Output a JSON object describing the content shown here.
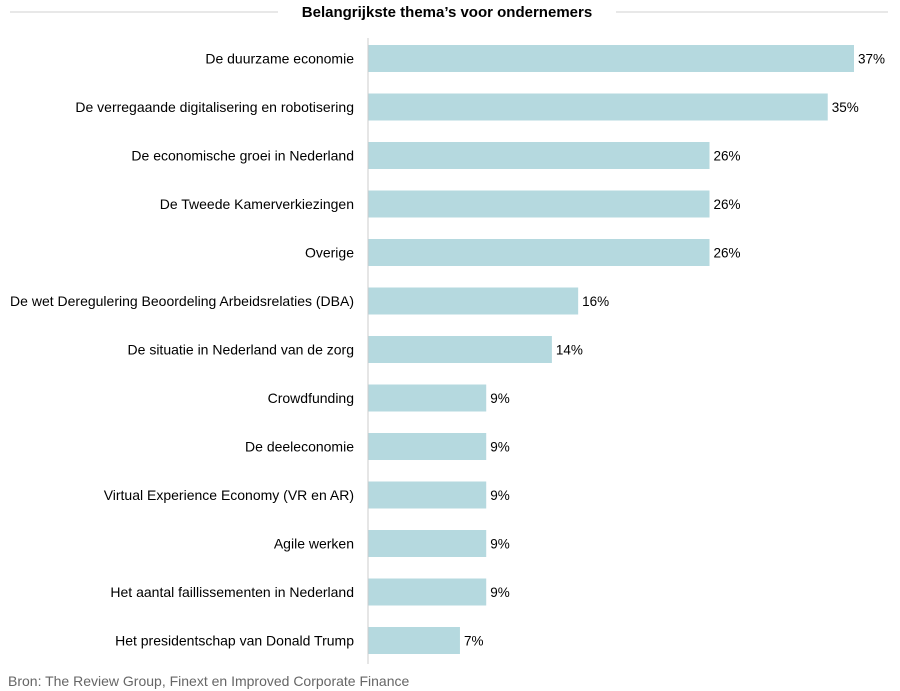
{
  "chart_data": {
    "type": "bar",
    "orientation": "horizontal",
    "title": "Belangrijkste thema’s voor ondernemers",
    "categories": [
      "De duurzame economie",
      "De verregaande digitalisering en robotisering",
      "De economische groei in Nederland",
      "De Tweede Kamerverkiezingen",
      "Overige",
      "De wet Deregulering Beoordeling Arbeidsrelaties (DBA)",
      "De situatie in Nederland van de zorg",
      "Crowdfunding",
      "De deeleconomie",
      "Virtual Experience Economy (VR en AR)",
      "Agile werken",
      "Het aantal faillissementen in Nederland",
      "Het presidentschap van Donald Trump"
    ],
    "values": [
      37,
      35,
      26,
      26,
      26,
      16,
      14,
      9,
      9,
      9,
      9,
      9,
      7
    ],
    "value_labels": [
      "37%",
      "35%",
      "26%",
      "26%",
      "26%",
      "16%",
      "14%",
      "9%",
      "9%",
      "9%",
      "9%",
      "9%",
      "7%"
    ],
    "xlim": [
      0,
      37
    ],
    "bar_color": "#b5d9df",
    "grid": false,
    "source": "Bron: The Review Group, Finext en Improved Corporate Finance"
  }
}
